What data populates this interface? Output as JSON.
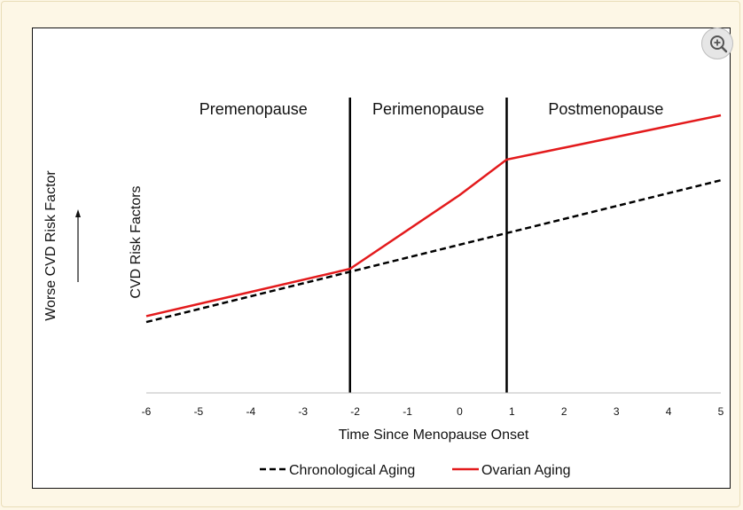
{
  "zoom_button": {
    "icon": "zoom-in-icon"
  },
  "chart_data": {
    "type": "line",
    "title": "",
    "xlabel": "Time Since Menopause Onset",
    "ylabel": "CVD Risk Factors",
    "outer_ylabel": "Worse CVD Risk Factor",
    "xlim": [
      -6,
      5
    ],
    "ylim": [
      0,
      100
    ],
    "x_ticks": [
      "-6",
      "-5",
      "-4",
      "-3",
      "-2",
      "-1",
      "0",
      "1",
      "2",
      "3",
      "4",
      "5"
    ],
    "y_ticks_shown": false,
    "grid": false,
    "legend_position": "bottom",
    "stage_dividers": [
      -2.1,
      0.9
    ],
    "stages": [
      {
        "label": "Premenopause",
        "x_center": -3.95
      },
      {
        "label": "Perimenopause",
        "x_center": -0.6
      },
      {
        "label": "Postmenopause",
        "x_center": 2.8
      }
    ],
    "series": [
      {
        "name": "Chronological Aging",
        "color": "#000000",
        "style": "dashed",
        "x": [
          -6,
          5
        ],
        "y": [
          24,
          72
        ]
      },
      {
        "name": "Ovarian Aging",
        "color": "#e31a1c",
        "style": "solid",
        "x": [
          -6,
          -2.1,
          0,
          0.9,
          5
        ],
        "y": [
          26,
          42,
          67,
          79,
          94
        ]
      }
    ]
  }
}
